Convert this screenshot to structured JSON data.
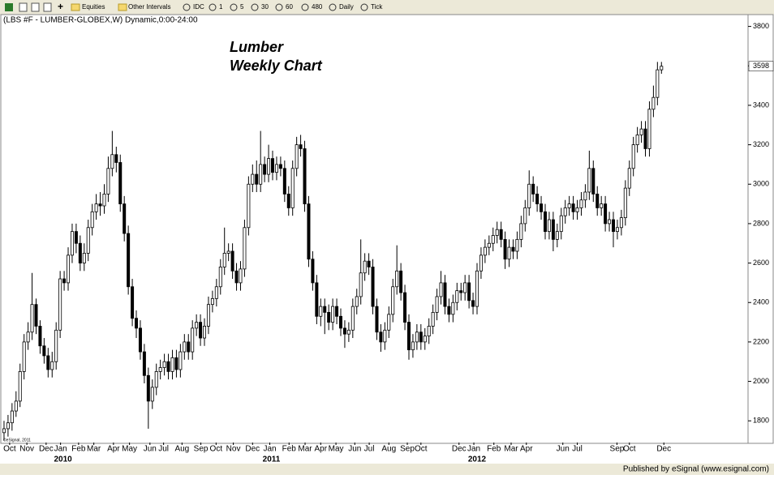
{
  "toolbar": {
    "items": [
      "Equities",
      "Other Intervals",
      "IDC",
      "1",
      "5",
      "30",
      "60",
      "480",
      "Daily",
      "Tick"
    ]
  },
  "chart_data": {
    "type": "candlestick",
    "header": "(LBS #F - LUMBER-GLOBEX,W) Dynamic,0:00-24:00",
    "title": "Lumber",
    "subtitle": "Weekly Chart",
    "credit": "©eSignal, 2011",
    "open": [
      1740,
      1760,
      1790,
      1850,
      1900,
      2050,
      2200,
      2250,
      2390,
      2280,
      2180,
      2130,
      2060,
      2100,
      2260,
      2520,
      2500,
      2640,
      2760,
      2700,
      2600,
      2650,
      2780,
      2860,
      2900,
      2890,
      2950,
      3080,
      3150,
      3110,
      2900,
      2750,
      2480,
      2320,
      2270,
      2150,
      2030,
      1900,
      1970,
      2050,
      2070,
      2100,
      2050,
      2120,
      2060,
      2150,
      2200,
      2150,
      2270,
      2300,
      2220,
      2280,
      2390,
      2420,
      2480,
      2580,
      2650,
      2660,
      2560,
      2500,
      2570,
      2780,
      3000,
      3050,
      3000,
      3100,
      3050,
      3130,
      3060,
      3100,
      3080,
      2950,
      2880,
      3080,
      3200,
      3180,
      2900,
      2620,
      2500,
      2330,
      2380,
      2350,
      2300,
      2380,
      2330,
      2270,
      2240,
      2260,
      2380,
      2430,
      2550,
      2610,
      2580,
      2380,
      2250,
      2200,
      2260,
      2340,
      2480,
      2560,
      2450,
      2300,
      2160,
      2200,
      2250,
      2200,
      2230,
      2280,
      2350,
      2430,
      2500,
      2380,
      2340,
      2400,
      2460,
      2450,
      2500,
      2410,
      2380,
      2560,
      2640,
      2680,
      2700,
      2740,
      2770,
      2720,
      2620,
      2680,
      2660,
      2720,
      2800,
      2880,
      3000,
      2950,
      2900,
      2860,
      2760,
      2820,
      2720,
      2760,
      2840,
      2880,
      2900,
      2860,
      2880,
      2920,
      2960,
      3080,
      2950,
      2880,
      2900,
      2800,
      2820,
      2760,
      2780,
      2830,
      2980,
      3080,
      3200,
      3250,
      3280,
      3180,
      3380,
      3440,
      3580
    ],
    "high": [
      1800,
      1830,
      1890,
      1950,
      2090,
      2240,
      2300,
      2550,
      2420,
      2310,
      2220,
      2170,
      2150,
      2300,
      2560,
      2560,
      2680,
      2800,
      2800,
      2740,
      2700,
      2820,
      2900,
      2950,
      2960,
      3000,
      3140,
      3270,
      3190,
      3150,
      2940,
      2790,
      2520,
      2360,
      2310,
      2190,
      2070,
      2010,
      2090,
      2110,
      2140,
      2140,
      2160,
      2160,
      2190,
      2240,
      2240,
      2310,
      2340,
      2340,
      2320,
      2430,
      2460,
      2520,
      2620,
      2780,
      2700,
      2700,
      2600,
      2610,
      2820,
      3040,
      3100,
      3120,
      3270,
      3140,
      3200,
      3170,
      3140,
      3140,
      3120,
      2990,
      3120,
      3240,
      3250,
      3220,
      2940,
      2660,
      2540,
      2420,
      2420,
      2390,
      2420,
      2420,
      2370,
      2310,
      2300,
      2420,
      2470,
      2720,
      2650,
      2650,
      2620,
      2420,
      2290,
      2300,
      2380,
      2520,
      2690,
      2600,
      2490,
      2340,
      2240,
      2290,
      2290,
      2270,
      2320,
      2390,
      2470,
      2560,
      2540,
      2420,
      2440,
      2500,
      2500,
      2540,
      2540,
      2450,
      2600,
      2680,
      2720,
      2740,
      2780,
      2810,
      2810,
      2760,
      2720,
      2720,
      2760,
      2840,
      2920,
      3070,
      3040,
      2990,
      2940,
      2900,
      2860,
      2860,
      2800,
      2880,
      2920,
      2940,
      2940,
      2920,
      2960,
      3000,
      3170,
      3120,
      2990,
      2940,
      2940,
      2860,
      2860,
      2820,
      2870,
      3020,
      3120,
      3240,
      3290,
      3320,
      3320,
      3420,
      3500,
      3620,
      3620
    ],
    "low": [
      1700,
      1720,
      1750,
      1820,
      1870,
      2010,
      2160,
      2210,
      2240,
      2140,
      2090,
      2020,
      2020,
      2060,
      2220,
      2460,
      2460,
      2600,
      2650,
      2560,
      2560,
      2610,
      2740,
      2820,
      2840,
      2850,
      2910,
      3040,
      3060,
      2860,
      2710,
      2440,
      2280,
      2220,
      2110,
      1990,
      1760,
      1860,
      1930,
      2010,
      2030,
      2010,
      2010,
      2020,
      2020,
      2110,
      2110,
      2110,
      2230,
      2180,
      2180,
      2240,
      2350,
      2380,
      2440,
      2540,
      2610,
      2520,
      2460,
      2460,
      2530,
      2740,
      2960,
      2960,
      2960,
      3010,
      3010,
      3020,
      3020,
      3040,
      2910,
      2840,
      2840,
      3040,
      3140,
      2860,
      2580,
      2460,
      2290,
      2280,
      2240,
      2260,
      2260,
      2290,
      2230,
      2170,
      2200,
      2220,
      2340,
      2390,
      2510,
      2540,
      2340,
      2210,
      2150,
      2160,
      2220,
      2300,
      2440,
      2410,
      2260,
      2110,
      2120,
      2160,
      2160,
      2160,
      2190,
      2240,
      2310,
      2390,
      2340,
      2300,
      2300,
      2360,
      2410,
      2410,
      2370,
      2340,
      2340,
      2520,
      2600,
      2640,
      2660,
      2700,
      2680,
      2570,
      2580,
      2620,
      2620,
      2680,
      2760,
      2840,
      2910,
      2860,
      2820,
      2720,
      2720,
      2660,
      2680,
      2720,
      2800,
      2840,
      2820,
      2820,
      2840,
      2880,
      2920,
      2910,
      2840,
      2840,
      2760,
      2760,
      2680,
      2720,
      2740,
      2790,
      2940,
      3040,
      3160,
      3210,
      3140,
      3140,
      3340,
      3400,
      3560
    ],
    "close": [
      1760,
      1790,
      1850,
      1900,
      2050,
      2200,
      2250,
      2390,
      2280,
      2180,
      2130,
      2060,
      2100,
      2260,
      2520,
      2500,
      2640,
      2760,
      2700,
      2600,
      2650,
      2780,
      2860,
      2900,
      2890,
      2950,
      3080,
      3150,
      3110,
      2900,
      2750,
      2480,
      2320,
      2270,
      2150,
      2030,
      1900,
      1970,
      2050,
      2070,
      2100,
      2050,
      2120,
      2060,
      2150,
      2200,
      2150,
      2270,
      2300,
      2220,
      2280,
      2390,
      2420,
      2480,
      2580,
      2650,
      2660,
      2560,
      2500,
      2570,
      2780,
      3000,
      3050,
      3000,
      3100,
      3050,
      3130,
      3060,
      3100,
      3080,
      2950,
      2880,
      3080,
      3200,
      3180,
      2900,
      2620,
      2500,
      2330,
      2380,
      2350,
      2300,
      2380,
      2330,
      2270,
      2240,
      2260,
      2380,
      2430,
      2550,
      2610,
      2580,
      2380,
      2250,
      2200,
      2260,
      2340,
      2480,
      2560,
      2450,
      2300,
      2160,
      2200,
      2250,
      2200,
      2230,
      2280,
      2350,
      2430,
      2500,
      2380,
      2340,
      2400,
      2460,
      2450,
      2500,
      2410,
      2380,
      2560,
      2640,
      2680,
      2700,
      2740,
      2770,
      2720,
      2620,
      2680,
      2660,
      2720,
      2800,
      2880,
      3000,
      2950,
      2900,
      2860,
      2760,
      2820,
      2720,
      2760,
      2840,
      2880,
      2900,
      2860,
      2880,
      2920,
      2960,
      3080,
      2950,
      2880,
      2900,
      2800,
      2820,
      2760,
      2780,
      2830,
      2980,
      3080,
      3200,
      3250,
      3280,
      3180,
      3380,
      3440,
      3580,
      3598
    ],
    "xlim": [
      -0.6,
      185.6
    ],
    "xticks": [
      {
        "value": 1.4,
        "label": "Oct"
      },
      {
        "value": 5.7,
        "label": "Nov"
      },
      {
        "value": 10.5,
        "label": "Dec"
      },
      {
        "value": 14.1,
        "label": "Jan"
      },
      {
        "value": 18.6,
        "label": "Feb"
      },
      {
        "value": 22.4,
        "label": "Mar"
      },
      {
        "value": 27.3,
        "label": "Apr"
      },
      {
        "value": 31.3,
        "label": "May"
      },
      {
        "value": 36.4,
        "label": "Jun"
      },
      {
        "value": 39.8,
        "label": "Jul"
      },
      {
        "value": 44.4,
        "label": "Aug"
      },
      {
        "value": 49.1,
        "label": "Sep"
      },
      {
        "value": 52.9,
        "label": "Oct"
      },
      {
        "value": 57.2,
        "label": "Nov"
      },
      {
        "value": 62,
        "label": "Dec"
      },
      {
        "value": 66.3,
        "label": "Jan"
      },
      {
        "value": 71.1,
        "label": "Feb"
      },
      {
        "value": 75.1,
        "label": "Mar"
      },
      {
        "value": 79,
        "label": "Apr"
      },
      {
        "value": 82.8,
        "label": "May"
      },
      {
        "value": 87.5,
        "label": "Jun"
      },
      {
        "value": 91.1,
        "label": "Jul"
      },
      {
        "value": 96,
        "label": "Aug"
      },
      {
        "value": 100.6,
        "label": "Sep"
      },
      {
        "value": 104,
        "label": "Oct"
      },
      {
        "value": 113.5,
        "label": "Dec"
      },
      {
        "value": 117.2,
        "label": "Jan"
      },
      {
        "value": 122.2,
        "label": "Feb"
      },
      {
        "value": 126.5,
        "label": "Mar"
      },
      {
        "value": 130.3,
        "label": "Apr"
      },
      {
        "value": 139.4,
        "label": "Jun"
      },
      {
        "value": 143,
        "label": "Jul"
      },
      {
        "value": 152.9,
        "label": "Sep"
      },
      {
        "value": 156,
        "label": "Oct"
      },
      {
        "value": 164.6,
        "label": "Dec"
      }
    ],
    "years": [
      {
        "value": 14.7,
        "label": "2010"
      },
      {
        "value": 66.7,
        "label": "2011"
      },
      {
        "value": 118,
        "label": "2012"
      }
    ],
    "ylim": [
      1690,
      3860
    ],
    "yticks": [
      1800,
      2000,
      2200,
      2400,
      2600,
      2800,
      3000,
      3200,
      3400,
      3600,
      3800
    ],
    "up_color": "#ffffff",
    "down_color": "#000000"
  },
  "footer": {
    "text": "Published by eSignal (www.esignal.com)"
  }
}
